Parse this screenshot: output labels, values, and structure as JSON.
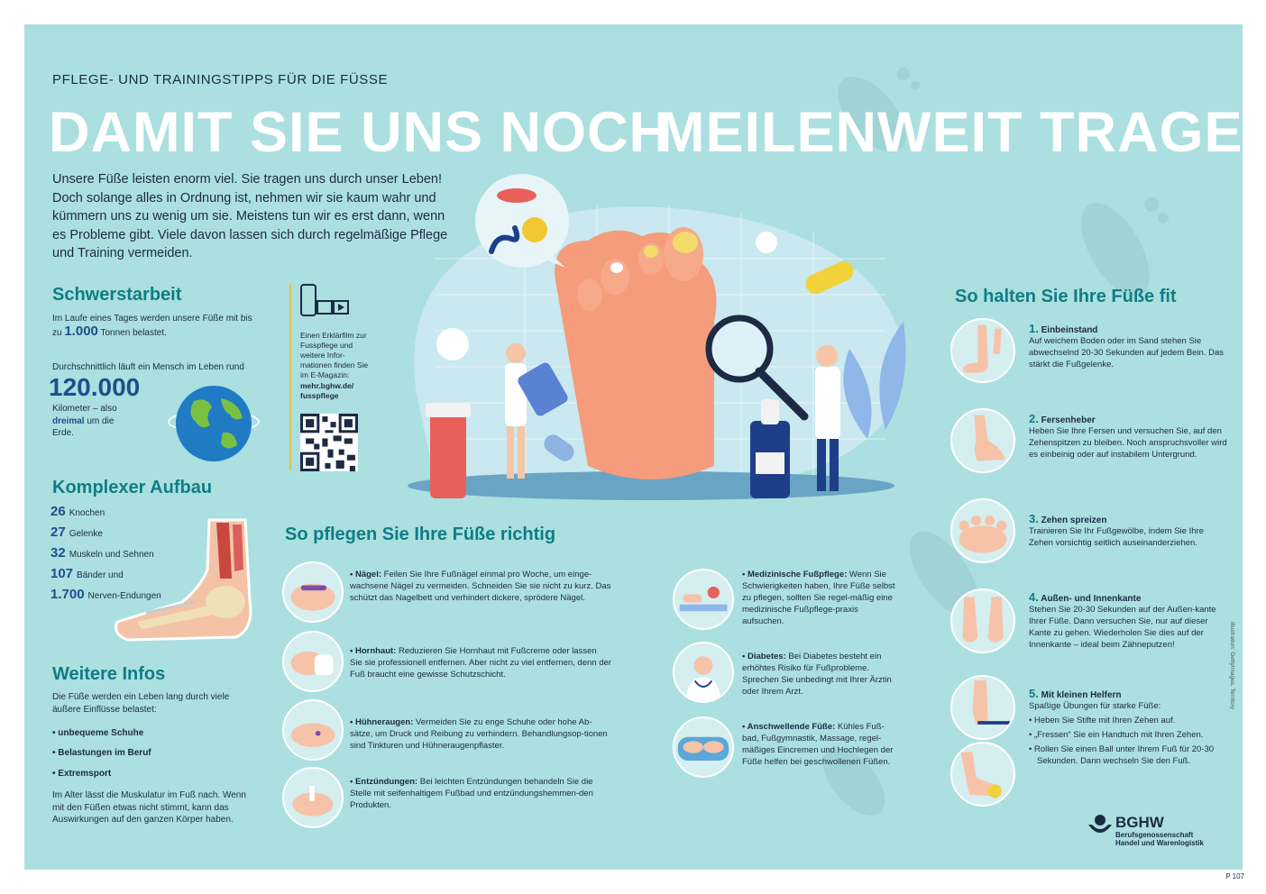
{
  "kicker": "PFLEGE- UND TRAININGSTIPPS FÜR DIE FÜSSE",
  "headline": {
    "part1": "DAMIT SIE UNS NOCH",
    "part2": "MEILENWEIT TRAGEN"
  },
  "intro": "Unsere Füße leisten enorm viel. Sie tragen uns durch unser Leben! Doch solange alles in Ordnung ist, nehmen wir sie kaum wahr und kümmern uns zu wenig um sie. Meistens tun wir es erst dann, wenn es Probleme gibt. Viele davon lassen sich durch regelmäßige Pflege und Training vermeiden.",
  "schwerstarbeit": {
    "title": "Schwerstarbeit",
    "line1": "Im Laufe eines Tages werden unsere Füße mit bis",
    "line2_pre": "zu",
    "line2_num": "1.000",
    "line2_post": "Tonnen belastet.",
    "line3": "Durchschnittlich läuft ein Mensch im Leben rund",
    "bignum": "120.000",
    "km_pre": "Kilometer – also",
    "km_bold": "dreimal",
    "km_mid": "um",
    "km_post": "die Erde."
  },
  "komplex": {
    "title": "Komplexer Aufbau",
    "rows": [
      {
        "num": "26",
        "label": "Knochen"
      },
      {
        "num": "27",
        "label": "Gelenke"
      },
      {
        "num": "32",
        "label": "Muskeln und Sehnen"
      },
      {
        "num": "107",
        "label": "Bänder und"
      },
      {
        "num": "1.700",
        "label": "Nerven-Endungen"
      }
    ]
  },
  "weitere": {
    "title": "Weitere Infos",
    "text": "Die Füße werden ein Leben lang durch viele äußere Einflüsse belastet:",
    "bullets": [
      "• unbequeme Schuhe",
      "• Belastungen im Beruf",
      "• Extremsport"
    ],
    "footer": "Im Alter lässt die Muskulatur im Fuß nach. Wenn mit den Füßen etwas nicht stimmt, kann das Auswirkungen auf den ganzen Körper haben."
  },
  "film": {
    "text": "Einen Erklärfilm zur Fusspflege und weitere Infor-mationen finden Sie im E-Magazin:",
    "link": "mehr.bghw.de/ fusspflege"
  },
  "pflege": {
    "title": "So pflegen Sie Ihre Füße richtig",
    "items": [
      {
        "label": "• Nägel:",
        "text": "Feilen Sie Ihre Fußnägel einmal pro Woche, um einge-wachsene Nägel zu vermeiden. Schneiden Sie sie nicht zu kurz. Das schützt das Nagelbett und verhindert dickere, sprödere Nägel."
      },
      {
        "label": "• Hornhaut:",
        "text": "Reduzieren Sie Hornhaut mit Fußcreme oder lassen Sie sie professionell entfernen. Aber nicht zu viel entfernen, denn der Fuß braucht eine gewisse Schutzschicht."
      },
      {
        "label": "• Hühneraugen:",
        "text": "Vermeiden Sie zu enge Schuhe oder hohe Ab-sätze, um Druck und Reibung zu verhindern. Behandlungsop-tionen sind Tinkturen und Hühneraugenpflaster."
      },
      {
        "label": "• Entzündungen:",
        "text": "Bei leichten Entzündungen behandeln Sie die Stelle mit seifenhaltigem Fußbad und entzündungshemmen-den Produkten."
      },
      {
        "label": "• Medizinische Fußpflege:",
        "text": "Wenn Sie Schwierigkeiten haben, Ihre Füße selbst zu pflegen, sollten Sie regel-mäßig eine medizinische Fußpflege-praxis aufsuchen."
      },
      {
        "label": "• Diabetes:",
        "text": "Bei Diabetes besteht ein erhöhtes Risiko für Fußprobleme. Sprechen Sie unbedingt mit Ihrer Ärztin oder Ihrem Arzt."
      },
      {
        "label": "• Anschwellende Füße:",
        "text": "Kühles Fuß-bad, Fußgymnastik, Massage, regel-mäßiges Eincremen und Hochlegen der Füße helfen bei geschwollenen Füßen."
      }
    ]
  },
  "fit": {
    "title": "So halten Sie Ihre Füße fit",
    "items": [
      {
        "num": "1.",
        "title": "Einbeinstand",
        "text": "Auf weichem Boden oder im Sand stehen Sie abwechselnd 20-30 Sekunden auf jedem Bein. Das stärkt die Fußgelenke."
      },
      {
        "num": "2.",
        "title": "Fersenheber",
        "text": "Heben Sie Ihre Fersen und versuchen Sie, auf den Zehenspitzen zu bleiben. Noch anspruchsvoller wird es einbeinig oder auf instabilem Untergrund."
      },
      {
        "num": "3.",
        "title": "Zehen spreizen",
        "text": "Trainieren Sie Ihr Fußgewölbe, indem Sie Ihre Zehen vorsichtig seitlich auseinanderziehen."
      },
      {
        "num": "4.",
        "title": "Außen- und Innenkante",
        "text": "Stehen Sie 20-30 Sekunden auf der Außen-kante Ihrer Füße. Dann versuchen Sie, nur auf dieser Kante zu gehen. Wiederholen Sie dies auf der Innenkante – ideal beim Zähneputzen!"
      },
      {
        "num": "5.",
        "title": "Mit kleinen Helfern",
        "text": "Spaßige Übungen für starke Füße:"
      }
    ],
    "helpers": [
      "• Heben Sie Stifte mit Ihren Zehen auf.",
      "• „Fressen“ Sie ein Handtuch mit Ihren Zehen.",
      "• Rollen Sie einen Ball unter Ihrem Fuß für 20-30 Sekunden. Dann wechseln Sie den Fuß."
    ]
  },
  "logo": {
    "name": "BGHW",
    "line1": "Berufsgenossenschaft",
    "line2": "Handel und Warenlogistik"
  },
  "credit": "Illustration: GettyImages, Territory",
  "code": "P 107",
  "colors": {
    "background": "#abdfe0",
    "accent": "#0f7d84",
    "navy": "#1d4f8c",
    "text": "#1d2a44"
  }
}
